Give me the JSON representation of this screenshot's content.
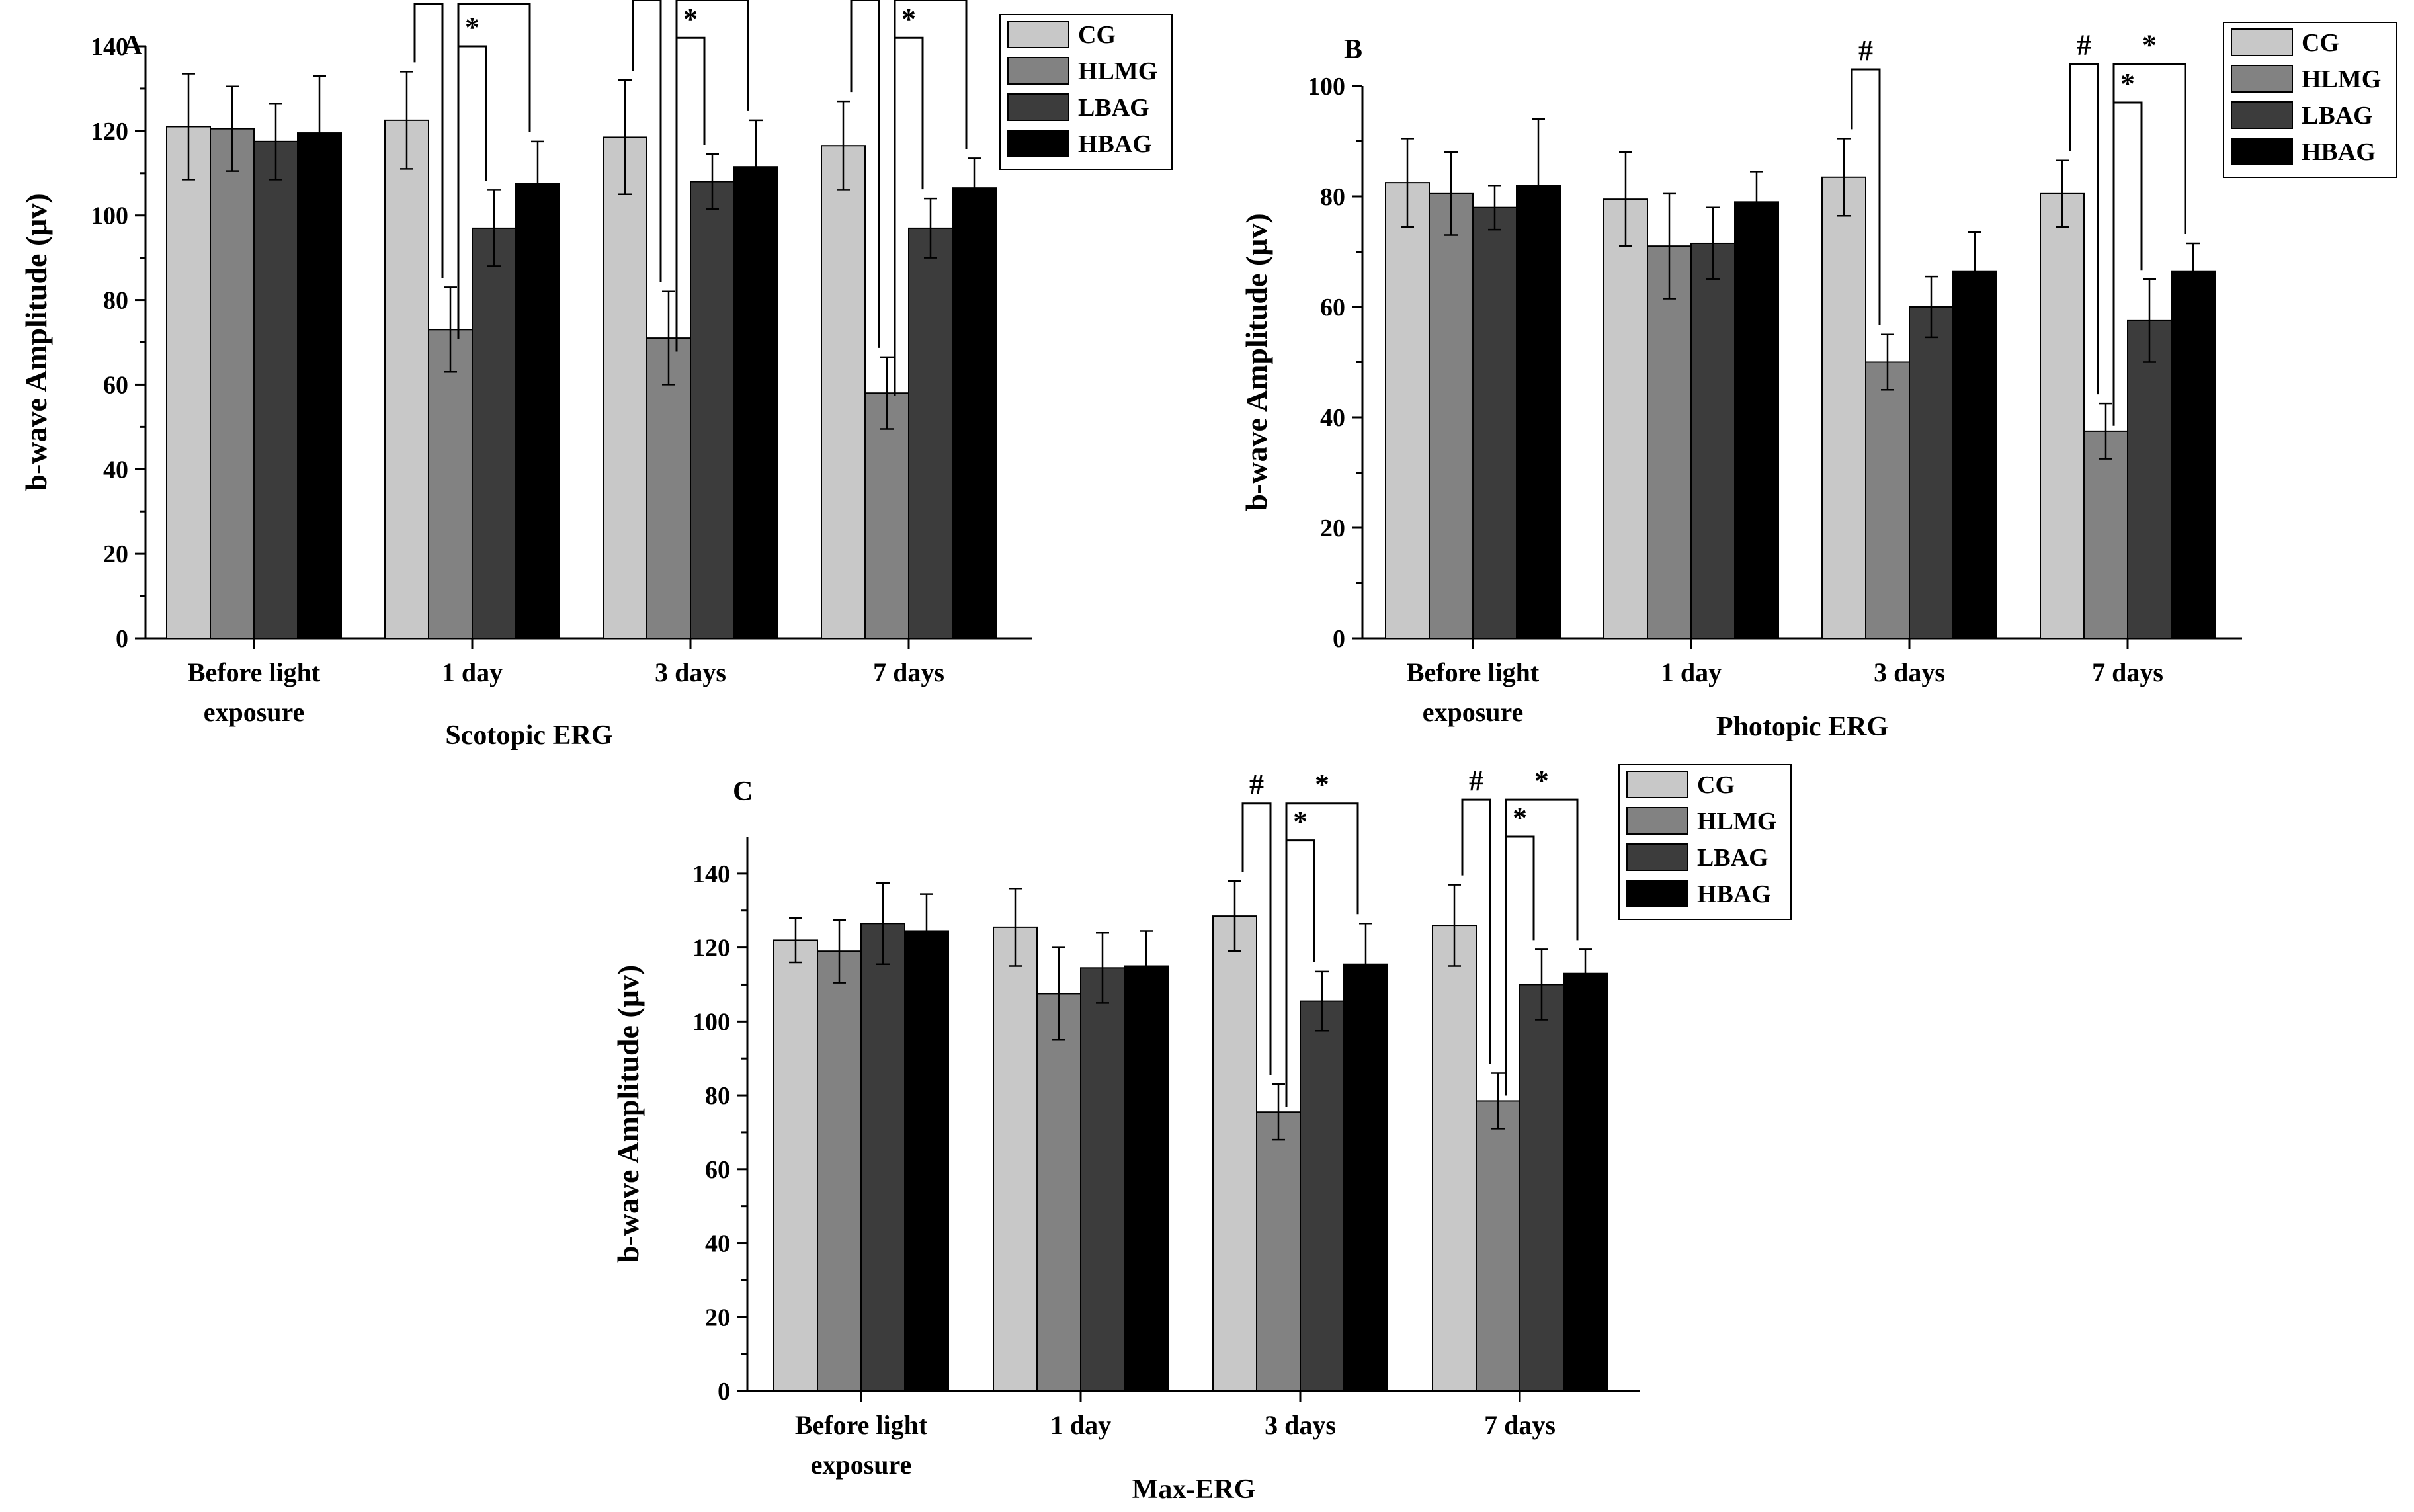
{
  "chart_data": [
    {
      "panel_label": "A",
      "type": "bar",
      "title": "Scotopic ERG",
      "ylabel": "b-wave Amplitude (μv)",
      "ylim": [
        0,
        140
      ],
      "yticks": [
        0,
        20,
        40,
        60,
        80,
        100,
        120,
        140
      ],
      "categories": [
        [
          "Before light",
          "exposure"
        ],
        [
          "1 day"
        ],
        [
          "3 days"
        ],
        [
          "7 days"
        ]
      ],
      "legend_position": "top-right",
      "series": [
        {
          "name": "CG",
          "color": "#c8c8c8",
          "values": [
            121,
            122.5,
            118.5,
            116.5
          ],
          "errors": [
            12.5,
            11.5,
            13.5,
            10.5
          ]
        },
        {
          "name": "HLMG",
          "color": "#828282",
          "values": [
            120.5,
            73,
            71,
            58
          ],
          "errors": [
            10,
            10,
            11,
            8.5
          ]
        },
        {
          "name": "LBAG",
          "color": "#3c3c3c",
          "values": [
            117.5,
            97,
            108,
            97
          ],
          "errors": [
            9,
            9,
            6.5,
            7
          ]
        },
        {
          "name": "HBAG",
          "color": "#000000",
          "values": [
            119.5,
            107.5,
            111.5,
            106.5
          ],
          "errors": [
            13.5,
            10,
            11,
            7
          ]
        }
      ],
      "significance": [
        {
          "category": 1,
          "from": 0,
          "to": 1,
          "symbol": "#",
          "y": 150
        },
        {
          "category": 1,
          "from": 1,
          "to": 3,
          "symbol": "*",
          "y": 150
        },
        {
          "category": 1,
          "from": 1,
          "to": 2,
          "symbol": "*",
          "y": 140
        },
        {
          "category": 2,
          "from": 0,
          "to": 1,
          "symbol": "#",
          "y": 151
        },
        {
          "category": 2,
          "from": 1,
          "to": 3,
          "symbol": "*",
          "y": 151
        },
        {
          "category": 2,
          "from": 1,
          "to": 2,
          "symbol": "*",
          "y": 142
        },
        {
          "category": 3,
          "from": 0,
          "to": 1,
          "symbol": "#",
          "y": 151
        },
        {
          "category": 3,
          "from": 1,
          "to": 3,
          "symbol": "*",
          "y": 151
        },
        {
          "category": 3,
          "from": 1,
          "to": 2,
          "symbol": "*",
          "y": 142
        }
      ]
    },
    {
      "panel_label": "B",
      "type": "bar",
      "title": "Photopic ERG",
      "ylabel": "b-wave Amplitude (μv)",
      "ylim": [
        0,
        100
      ],
      "yticks": [
        0,
        20,
        40,
        60,
        80,
        100
      ],
      "categories": [
        [
          "Before light",
          "exposure"
        ],
        [
          "1 day"
        ],
        [
          "3 days"
        ],
        [
          "7 days"
        ]
      ],
      "legend_position": "top-right",
      "series": [
        {
          "name": "CG",
          "color": "#c8c8c8",
          "values": [
            82.5,
            79.5,
            83.5,
            80.5
          ],
          "errors": [
            8,
            8.5,
            7,
            6
          ]
        },
        {
          "name": "HLMG",
          "color": "#828282",
          "values": [
            80.5,
            71,
            50,
            37.5
          ],
          "errors": [
            7.5,
            9.5,
            5,
            5
          ]
        },
        {
          "name": "LBAG",
          "color": "#3c3c3c",
          "values": [
            78,
            71.5,
            60,
            57.5
          ],
          "errors": [
            4,
            6.5,
            5.5,
            7.5
          ]
        },
        {
          "name": "HBAG",
          "color": "#000000",
          "values": [
            82,
            79,
            66.5,
            66.5
          ],
          "errors": [
            12,
            5.5,
            7,
            5
          ]
        }
      ],
      "significance": [
        {
          "category": 2,
          "from": 0,
          "to": 1,
          "symbol": "#",
          "y": 103
        },
        {
          "category": 3,
          "from": 0,
          "to": 1,
          "symbol": "#",
          "y": 104
        },
        {
          "category": 3,
          "from": 1,
          "to": 3,
          "symbol": "*",
          "y": 104
        },
        {
          "category": 3,
          "from": 1,
          "to": 2,
          "symbol": "*",
          "y": 97
        }
      ]
    },
    {
      "panel_label": "C",
      "type": "bar",
      "title": "Max-ERG",
      "ylabel": "b-wave Amplitude (μv)",
      "ylim": [
        0,
        150
      ],
      "yticks": [
        0,
        20,
        40,
        60,
        80,
        100,
        120,
        140
      ],
      "categories": [
        [
          "Before light",
          "exposure"
        ],
        [
          "1 day"
        ],
        [
          "3 days"
        ],
        [
          "7 days"
        ]
      ],
      "legend_position": "top-right",
      "series": [
        {
          "name": "CG",
          "color": "#c8c8c8",
          "values": [
            122,
            125.5,
            128.5,
            126
          ],
          "errors": [
            6,
            10.5,
            9.5,
            11
          ]
        },
        {
          "name": "HLMG",
          "color": "#828282",
          "values": [
            119,
            107.5,
            75.5,
            78.5
          ],
          "errors": [
            8.5,
            12.5,
            7.5,
            7.5
          ]
        },
        {
          "name": "LBAG",
          "color": "#3c3c3c",
          "values": [
            126.5,
            114.5,
            105.5,
            110
          ],
          "errors": [
            11,
            9.5,
            8,
            9.5
          ]
        },
        {
          "name": "HBAG",
          "color": "#000000",
          "values": [
            124.5,
            115,
            115.5,
            113
          ],
          "errors": [
            10,
            9.5,
            11,
            6.5
          ]
        }
      ],
      "significance": [
        {
          "category": 2,
          "from": 0,
          "to": 1,
          "symbol": "#",
          "y": 159
        },
        {
          "category": 2,
          "from": 1,
          "to": 3,
          "symbol": "*",
          "y": 159
        },
        {
          "category": 2,
          "from": 1,
          "to": 2,
          "symbol": "*",
          "y": 149
        },
        {
          "category": 3,
          "from": 0,
          "to": 1,
          "symbol": "#",
          "y": 160
        },
        {
          "category": 3,
          "from": 1,
          "to": 3,
          "symbol": "*",
          "y": 160
        },
        {
          "category": 3,
          "from": 1,
          "to": 2,
          "symbol": "*",
          "y": 150
        }
      ]
    }
  ]
}
